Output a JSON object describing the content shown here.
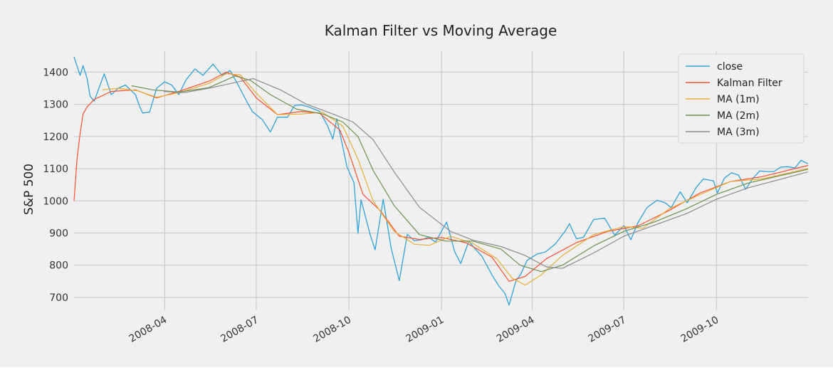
{
  "chart_data": {
    "type": "line",
    "title": "Kalman Filter vs Moving Average",
    "xlabel": "",
    "ylabel": "S&P 500",
    "x_start": "2008-01-02",
    "x_end": "2009-12-31",
    "xlim": [
      "2008-01-02",
      "2009-12-31"
    ],
    "ylim": [
      660,
      1465
    ],
    "y_ticks": [
      700,
      800,
      900,
      1000,
      1100,
      1200,
      1300,
      1400
    ],
    "x_ticks": [
      "2008-04",
      "2008-07",
      "2008-10",
      "2009-01",
      "2009-04",
      "2009-07",
      "2009-10"
    ],
    "grid": true,
    "legend_position": "top-right",
    "series": [
      {
        "name": "close",
        "color": "#30a2da",
        "points": [
          [
            "2008-01-02",
            1447
          ],
          [
            "2008-01-08",
            1390
          ],
          [
            "2008-01-11",
            1420
          ],
          [
            "2008-01-15",
            1380
          ],
          [
            "2008-01-18",
            1325
          ],
          [
            "2008-01-22",
            1310
          ],
          [
            "2008-02-01",
            1395
          ],
          [
            "2008-02-08",
            1330
          ],
          [
            "2008-02-15",
            1350
          ],
          [
            "2008-02-22",
            1360
          ],
          [
            "2008-03-03",
            1330
          ],
          [
            "2008-03-07",
            1295
          ],
          [
            "2008-03-10",
            1273
          ],
          [
            "2008-03-17",
            1276
          ],
          [
            "2008-03-24",
            1350
          ],
          [
            "2008-04-01",
            1370
          ],
          [
            "2008-04-08",
            1360
          ],
          [
            "2008-04-15",
            1330
          ],
          [
            "2008-04-22",
            1375
          ],
          [
            "2008-05-01",
            1410
          ],
          [
            "2008-05-09",
            1390
          ],
          [
            "2008-05-19",
            1425
          ],
          [
            "2008-05-28",
            1390
          ],
          [
            "2008-06-05",
            1405
          ],
          [
            "2008-06-13",
            1360
          ],
          [
            "2008-06-20",
            1318
          ],
          [
            "2008-06-27",
            1278
          ],
          [
            "2008-07-07",
            1252
          ],
          [
            "2008-07-15",
            1214
          ],
          [
            "2008-07-22",
            1260
          ],
          [
            "2008-08-01",
            1260
          ],
          [
            "2008-08-08",
            1296
          ],
          [
            "2008-08-15",
            1298
          ],
          [
            "2008-08-22",
            1292
          ],
          [
            "2008-09-02",
            1278
          ],
          [
            "2008-09-10",
            1232
          ],
          [
            "2008-09-15",
            1192
          ],
          [
            "2008-09-19",
            1255
          ],
          [
            "2008-09-29",
            1106
          ],
          [
            "2008-10-06",
            1056
          ],
          [
            "2008-10-10",
            899
          ],
          [
            "2008-10-13",
            1003
          ],
          [
            "2008-10-22",
            896
          ],
          [
            "2008-10-27",
            848
          ],
          [
            "2008-11-04",
            1005
          ],
          [
            "2008-11-12",
            852
          ],
          [
            "2008-11-20",
            752
          ],
          [
            "2008-11-28",
            896
          ],
          [
            "2008-12-05",
            876
          ],
          [
            "2008-12-12",
            879
          ],
          [
            "2008-12-19",
            887
          ],
          [
            "2008-12-26",
            872
          ],
          [
            "2009-01-06",
            934
          ],
          [
            "2009-01-14",
            842
          ],
          [
            "2009-01-20",
            805
          ],
          [
            "2009-01-28",
            874
          ],
          [
            "2009-02-05",
            845
          ],
          [
            "2009-02-10",
            828
          ],
          [
            "2009-02-20",
            770
          ],
          [
            "2009-02-27",
            735
          ],
          [
            "2009-03-05",
            712
          ],
          [
            "2009-03-09",
            676
          ],
          [
            "2009-03-16",
            753
          ],
          [
            "2009-03-20",
            768
          ],
          [
            "2009-03-27",
            815
          ],
          [
            "2009-04-06",
            835
          ],
          [
            "2009-04-14",
            841
          ],
          [
            "2009-04-24",
            866
          ],
          [
            "2009-05-04",
            907
          ],
          [
            "2009-05-08",
            929
          ],
          [
            "2009-05-15",
            882
          ],
          [
            "2009-05-22",
            887
          ],
          [
            "2009-06-01",
            942
          ],
          [
            "2009-06-12",
            946
          ],
          [
            "2009-06-22",
            893
          ],
          [
            "2009-07-01",
            923
          ],
          [
            "2009-07-08",
            879
          ],
          [
            "2009-07-15",
            932
          ],
          [
            "2009-07-24",
            979
          ],
          [
            "2009-08-03",
            1002
          ],
          [
            "2009-08-11",
            994
          ],
          [
            "2009-08-17",
            979
          ],
          [
            "2009-08-26",
            1028
          ],
          [
            "2009-09-02",
            994
          ],
          [
            "2009-09-11",
            1042
          ],
          [
            "2009-09-18",
            1068
          ],
          [
            "2009-09-28",
            1062
          ],
          [
            "2009-10-02",
            1025
          ],
          [
            "2009-10-09",
            1071
          ],
          [
            "2009-10-16",
            1087
          ],
          [
            "2009-10-23",
            1080
          ],
          [
            "2009-10-30",
            1036
          ],
          [
            "2009-11-06",
            1069
          ],
          [
            "2009-11-13",
            1093
          ],
          [
            "2009-11-20",
            1091
          ],
          [
            "2009-11-27",
            1091
          ],
          [
            "2009-12-04",
            1105
          ],
          [
            "2009-12-11",
            1106
          ],
          [
            "2009-12-18",
            1102
          ],
          [
            "2009-12-24",
            1126
          ],
          [
            "2009-12-31",
            1115
          ]
        ]
      },
      {
        "name": "Kalman Filter",
        "color": "#fc4f30",
        "points": [
          [
            "2008-01-02",
            1000
          ],
          [
            "2008-01-05",
            1130
          ],
          [
            "2008-01-08",
            1210
          ],
          [
            "2008-01-11",
            1270
          ],
          [
            "2008-01-15",
            1292
          ],
          [
            "2008-01-22",
            1315
          ],
          [
            "2008-02-08",
            1340
          ],
          [
            "2008-03-03",
            1345
          ],
          [
            "2008-03-24",
            1320
          ],
          [
            "2008-04-15",
            1340
          ],
          [
            "2008-05-15",
            1372
          ],
          [
            "2008-06-01",
            1400
          ],
          [
            "2008-06-15",
            1385
          ],
          [
            "2008-07-01",
            1320
          ],
          [
            "2008-07-22",
            1268
          ],
          [
            "2008-08-15",
            1278
          ],
          [
            "2008-09-02",
            1272
          ],
          [
            "2008-09-22",
            1220
          ],
          [
            "2008-10-01",
            1150
          ],
          [
            "2008-10-15",
            1020
          ],
          [
            "2008-11-01",
            970
          ],
          [
            "2008-11-20",
            890
          ],
          [
            "2008-12-10",
            880
          ],
          [
            "2009-01-01",
            886
          ],
          [
            "2009-01-25",
            870
          ],
          [
            "2009-02-20",
            825
          ],
          [
            "2009-03-09",
            750
          ],
          [
            "2009-03-25",
            765
          ],
          [
            "2009-04-15",
            820
          ],
          [
            "2009-05-15",
            870
          ],
          [
            "2009-06-15",
            905
          ],
          [
            "2009-07-15",
            922
          ],
          [
            "2009-08-15",
            970
          ],
          [
            "2009-09-15",
            1025
          ],
          [
            "2009-10-15",
            1060
          ],
          [
            "2009-11-15",
            1075
          ],
          [
            "2009-12-31",
            1110
          ]
        ]
      },
      {
        "name": "MA (1m)",
        "color": "#e5ae38",
        "points": [
          [
            "2008-01-30",
            1345
          ],
          [
            "2008-02-15",
            1350
          ],
          [
            "2008-03-05",
            1342
          ],
          [
            "2008-03-24",
            1322
          ],
          [
            "2008-04-15",
            1336
          ],
          [
            "2008-05-15",
            1365
          ],
          [
            "2008-06-01",
            1395
          ],
          [
            "2008-06-15",
            1392
          ],
          [
            "2008-07-01",
            1335
          ],
          [
            "2008-07-22",
            1268
          ],
          [
            "2008-08-15",
            1270
          ],
          [
            "2008-09-05",
            1275
          ],
          [
            "2008-09-25",
            1232
          ],
          [
            "2008-10-10",
            1130
          ],
          [
            "2008-10-25",
            1000
          ],
          [
            "2008-11-15",
            905
          ],
          [
            "2008-12-05",
            865
          ],
          [
            "2008-12-20",
            862
          ],
          [
            "2009-01-10",
            890
          ],
          [
            "2009-02-01",
            868
          ],
          [
            "2009-02-25",
            820
          ],
          [
            "2009-03-12",
            760
          ],
          [
            "2009-03-25",
            738
          ],
          [
            "2009-04-10",
            770
          ],
          [
            "2009-05-01",
            830
          ],
          [
            "2009-06-01",
            895
          ],
          [
            "2009-07-01",
            920
          ],
          [
            "2009-07-20",
            915
          ],
          [
            "2009-08-15",
            975
          ],
          [
            "2009-09-15",
            1020
          ],
          [
            "2009-10-15",
            1060
          ],
          [
            "2009-11-15",
            1068
          ],
          [
            "2009-12-31",
            1100
          ]
        ]
      },
      {
        "name": "MA (2m)",
        "color": "#6d904f",
        "points": [
          [
            "2008-02-28",
            1358
          ],
          [
            "2008-03-20",
            1345
          ],
          [
            "2008-04-15",
            1338
          ],
          [
            "2008-05-15",
            1352
          ],
          [
            "2008-06-10",
            1388
          ],
          [
            "2008-06-25",
            1375
          ],
          [
            "2008-07-15",
            1330
          ],
          [
            "2008-08-10",
            1285
          ],
          [
            "2008-09-05",
            1270
          ],
          [
            "2008-09-25",
            1245
          ],
          [
            "2008-10-10",
            1200
          ],
          [
            "2008-10-25",
            1095
          ],
          [
            "2008-11-15",
            985
          ],
          [
            "2008-12-10",
            895
          ],
          [
            "2009-01-05",
            875
          ],
          [
            "2009-02-01",
            875
          ],
          [
            "2009-03-01",
            850
          ],
          [
            "2009-03-20",
            800
          ],
          [
            "2009-04-10",
            780
          ],
          [
            "2009-05-01",
            800
          ],
          [
            "2009-06-01",
            860
          ],
          [
            "2009-07-01",
            905
          ],
          [
            "2009-08-01",
            935
          ],
          [
            "2009-09-01",
            975
          ],
          [
            "2009-10-01",
            1020
          ],
          [
            "2009-11-01",
            1055
          ],
          [
            "2009-12-31",
            1098
          ]
        ]
      },
      {
        "name": "MA (3m)",
        "color": "#8b8b8b",
        "points": [
          [
            "2008-03-31",
            1340
          ],
          [
            "2008-04-20",
            1336
          ],
          [
            "2008-05-15",
            1350
          ],
          [
            "2008-06-10",
            1368
          ],
          [
            "2008-06-28",
            1380
          ],
          [
            "2008-07-25",
            1345
          ],
          [
            "2008-08-20",
            1300
          ],
          [
            "2008-09-15",
            1270
          ],
          [
            "2008-10-05",
            1245
          ],
          [
            "2008-10-25",
            1190
          ],
          [
            "2008-11-15",
            1090
          ],
          [
            "2008-12-10",
            980
          ],
          [
            "2009-01-10",
            905
          ],
          [
            "2009-02-01",
            878
          ],
          [
            "2009-03-01",
            858
          ],
          [
            "2009-03-25",
            830
          ],
          [
            "2009-04-15",
            795
          ],
          [
            "2009-05-01",
            790
          ],
          [
            "2009-06-01",
            838
          ],
          [
            "2009-07-01",
            890
          ],
          [
            "2009-08-01",
            925
          ],
          [
            "2009-09-01",
            960
          ],
          [
            "2009-10-01",
            1005
          ],
          [
            "2009-11-01",
            1040
          ],
          [
            "2009-12-31",
            1090
          ]
        ]
      }
    ]
  }
}
